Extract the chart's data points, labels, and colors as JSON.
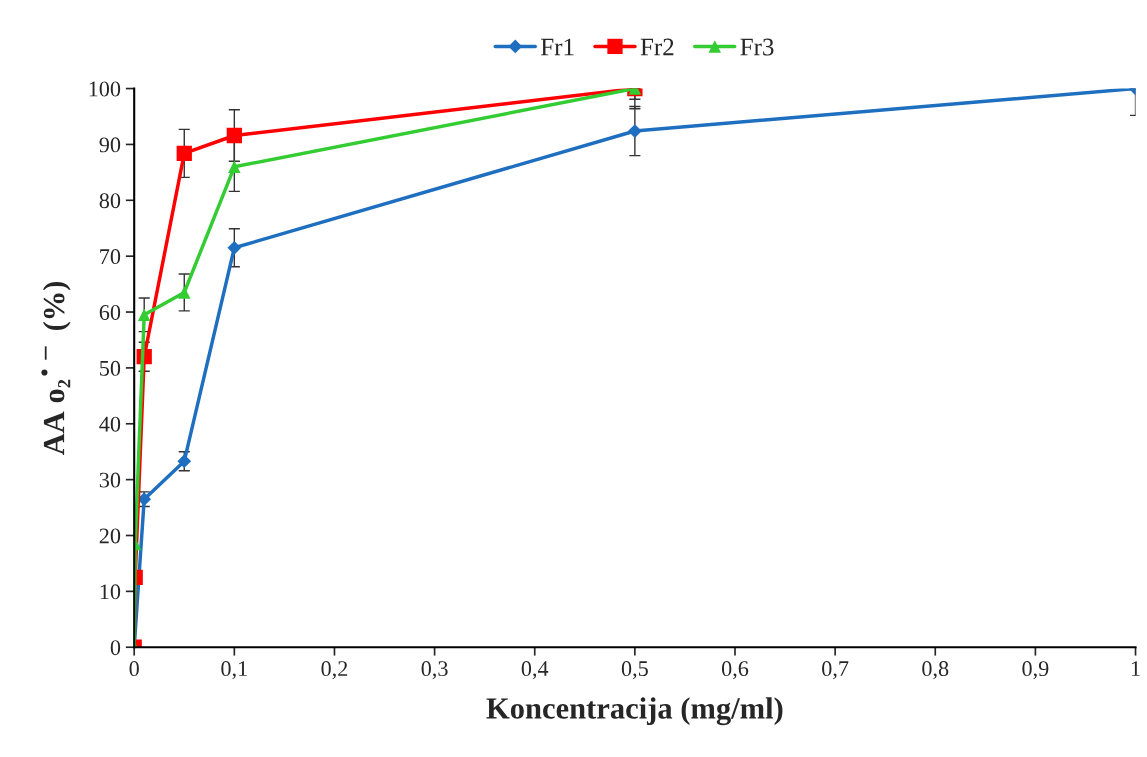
{
  "chart_data": {
    "type": "line",
    "xlabel": "Koncentracija (mg/ml)",
    "ylabel": "AA o₂$^{•−}$ (%)",
    "xlim": [
      0,
      1
    ],
    "ylim": [
      0,
      100
    ],
    "xticks": [
      0,
      {
        "value": 0.1,
        "label": "0,1"
      },
      {
        "value": 0.2,
        "label": "0,2"
      },
      {
        "value": 0.3,
        "label": "0,3"
      },
      {
        "value": 0.4,
        "label": "0,4"
      },
      {
        "value": 0.5,
        "label": "0,5"
      },
      {
        "value": 0.6,
        "label": "0,6"
      },
      {
        "value": 0.7,
        "label": "0,7"
      },
      {
        "value": 0.8,
        "label": "0,8"
      },
      {
        "value": 0.9,
        "label": "0,9"
      },
      1
    ],
    "yticks": [
      0,
      10,
      20,
      30,
      40,
      50,
      60,
      70,
      80,
      90,
      100
    ],
    "grid": false,
    "legend": "top",
    "series": [
      {
        "name": "Fr1",
        "color": "#1f6fc0",
        "marker": "diamond",
        "x": [
          0,
          0.01,
          0.05,
          0.1,
          0.5,
          1
        ],
        "values": [
          0,
          26.5,
          33.3,
          71.5,
          92.4,
          100
        ],
        "errors": [
          null,
          1.3,
          1.7,
          3.4,
          4.4,
          [
            95.2,
            100
          ]
        ]
      },
      {
        "name": "Fr2",
        "color": "#ff0000",
        "marker": "square",
        "x": [
          0,
          0.001,
          0.01,
          0.05,
          0.1,
          0.5
        ],
        "values": [
          0,
          12.5,
          52,
          88.4,
          91.6,
          100
        ],
        "errors": [
          null,
          null,
          2.6,
          4.3,
          4.6,
          [
            98.1,
            100
          ]
        ]
      },
      {
        "name": "Fr3",
        "color": "#33cc33",
        "marker": "triangle",
        "x": [
          0,
          0.001,
          0.01,
          0.05,
          0.1,
          0.5
        ],
        "values": [
          0,
          18.5,
          59.5,
          63.5,
          86,
          100
        ],
        "errors": [
          null,
          null,
          3,
          3.3,
          4.4,
          [
            96.4,
            100
          ]
        ]
      }
    ]
  }
}
